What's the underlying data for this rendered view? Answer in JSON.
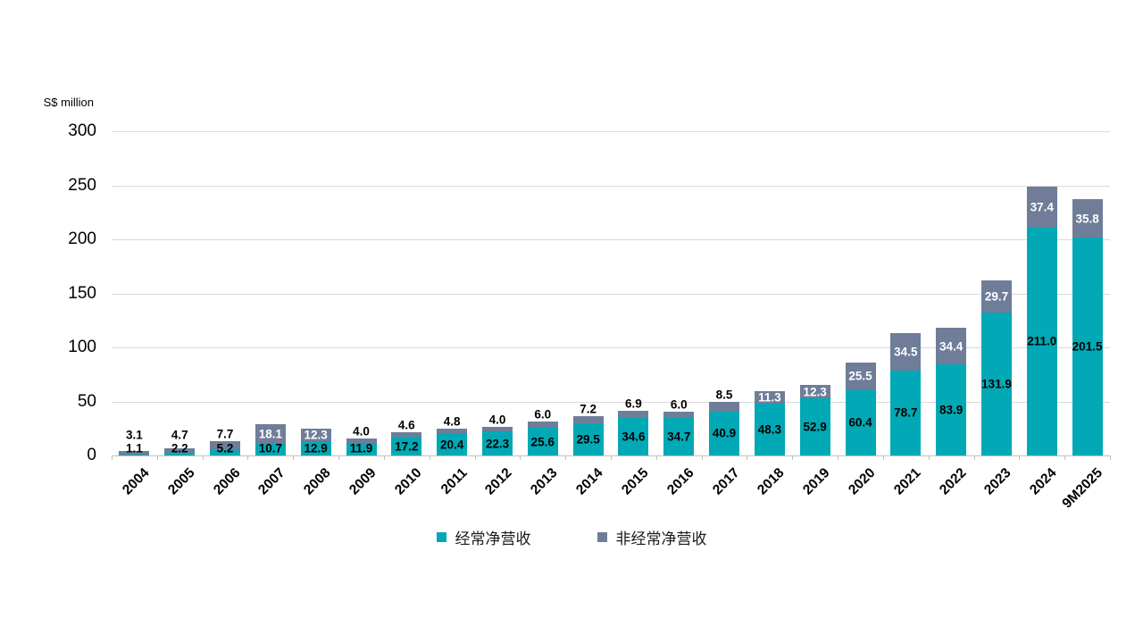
{
  "chart_data": {
    "type": "bar",
    "stacked": true,
    "unit_label": "S$ million",
    "categories": [
      "2004",
      "2005",
      "2006",
      "2007",
      "2008",
      "2009",
      "2010",
      "2011",
      "2012",
      "2013",
      "2014",
      "2015",
      "2016",
      "2017",
      "2018",
      "2019",
      "2020",
      "2021",
      "2022",
      "2023",
      "2024",
      "9M2025"
    ],
    "series": [
      {
        "name": "经常净营收",
        "color": "#00a9b5",
        "label_color": "#000000",
        "values": [
          1.1,
          2.2,
          5.2,
          10.7,
          12.9,
          11.9,
          17.2,
          20.4,
          22.3,
          25.6,
          29.5,
          34.6,
          34.7,
          40.9,
          48.3,
          52.9,
          60.4,
          78.7,
          83.9,
          131.9,
          211.0,
          201.5
        ]
      },
      {
        "name": "非经常净营收",
        "color": "#6f7d99",
        "label_color_inside": "#ffffff",
        "label_color_outside": "#000000",
        "values": [
          3.1,
          4.7,
          7.7,
          18.1,
          12.3,
          4.0,
          4.6,
          4.8,
          4.0,
          6.0,
          7.2,
          6.9,
          6.0,
          8.5,
          11.3,
          12.3,
          25.5,
          34.5,
          34.4,
          29.7,
          37.4,
          35.8
        ]
      }
    ],
    "y_ticks": [
      0,
      50,
      100,
      150,
      200,
      250,
      300
    ],
    "ylim": [
      0,
      300
    ],
    "grid": true,
    "legend_position": "bottom"
  }
}
